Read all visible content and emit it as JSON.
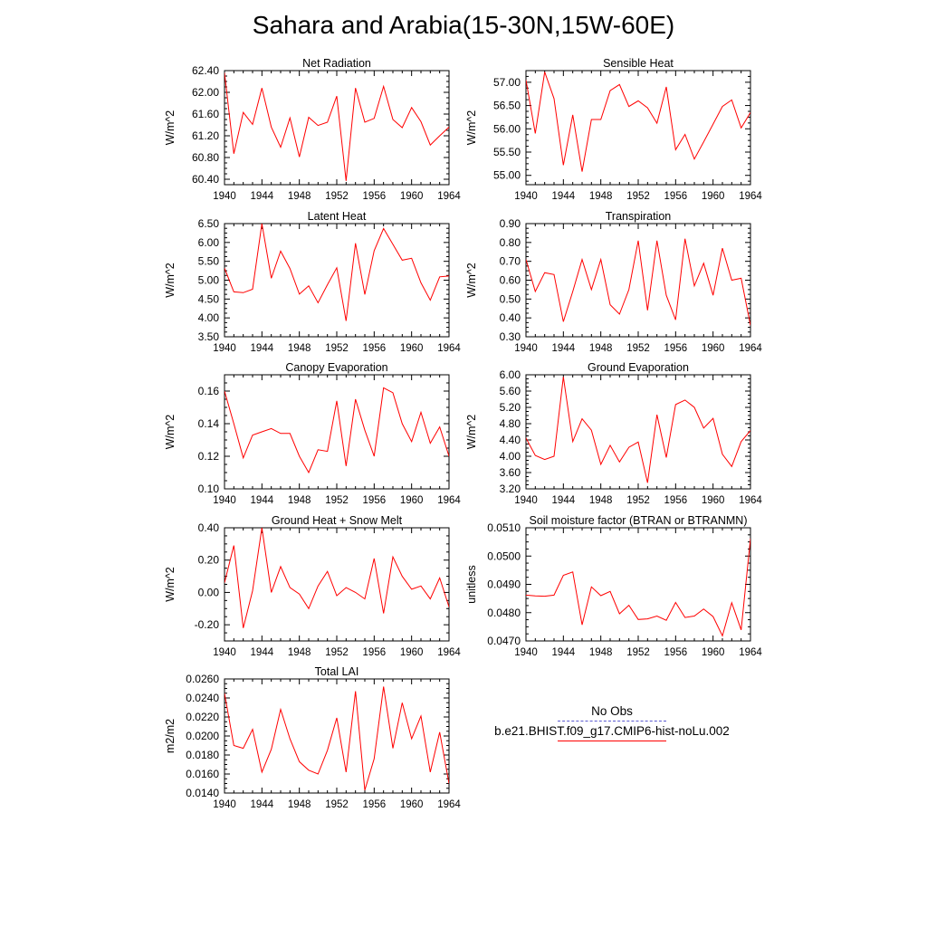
{
  "title": "Sahara and Arabia(15-30N,15W-60E)",
  "legend": {
    "obs_label": "No Obs",
    "model_label": "b.e21.BHIST.f09_g17.CMIP6-hist-noLu.002",
    "obs_color": "#5a5ad0",
    "model_color": "#ff0000"
  },
  "chart_data": [
    {
      "type": "line",
      "title": "Net Radiation",
      "ylabel": "W/m^2",
      "xlim": [
        1940,
        1964
      ],
      "ylim": [
        60.3,
        62.4
      ],
      "x_ticks": [
        "1940",
        "1944",
        "1948",
        "1952",
        "1956",
        "1960",
        "1964"
      ],
      "y_ticks": [
        "60.40",
        "60.80",
        "61.20",
        "61.60",
        "62.00",
        "62.40"
      ],
      "series": [
        {
          "x": [
            1940,
            1941,
            1942,
            1943,
            1944,
            1945,
            1946,
            1947,
            1948,
            1949,
            1950,
            1951,
            1952,
            1953,
            1954,
            1955,
            1956,
            1957,
            1958,
            1959,
            1960,
            1961,
            1962,
            1963,
            1964
          ],
          "y": [
            62.36,
            60.87,
            61.63,
            61.41,
            62.08,
            61.36,
            60.99,
            61.53,
            60.81,
            61.54,
            61.39,
            61.45,
            61.93,
            60.37,
            62.08,
            61.45,
            61.52,
            62.11,
            61.5,
            61.35,
            61.72,
            61.46,
            61.03,
            61.2,
            61.36
          ]
        }
      ]
    },
    {
      "type": "line",
      "title": "Sensible Heat",
      "ylabel": "W/m^2",
      "xlim": [
        1940,
        1964
      ],
      "ylim": [
        54.8,
        57.25
      ],
      "x_ticks": [
        "1940",
        "1944",
        "1948",
        "1952",
        "1956",
        "1960",
        "1964"
      ],
      "y_ticks": [
        "55.00",
        "55.50",
        "56.00",
        "56.50",
        "57.00"
      ],
      "series": [
        {
          "x": [
            1940,
            1941,
            1942,
            1943,
            1944,
            1945,
            1946,
            1947,
            1948,
            1949,
            1950,
            1951,
            1952,
            1953,
            1954,
            1955,
            1956,
            1957,
            1958,
            1959,
            1960,
            1961,
            1962,
            1963,
            1964
          ],
          "y": [
            57.05,
            55.9,
            57.22,
            56.65,
            55.22,
            56.3,
            55.08,
            56.2,
            56.2,
            56.82,
            56.95,
            56.48,
            56.6,
            56.45,
            56.12,
            56.9,
            55.55,
            55.88,
            55.35,
            55.72,
            56.1,
            56.48,
            56.62,
            56.02,
            56.35
          ]
        }
      ]
    },
    {
      "type": "line",
      "title": "Latent Heat",
      "ylabel": "W/m^2",
      "xlim": [
        1940,
        1964
      ],
      "ylim": [
        3.5,
        6.5
      ],
      "x_ticks": [
        "1940",
        "1944",
        "1948",
        "1952",
        "1956",
        "1960",
        "1964"
      ],
      "y_ticks": [
        "3.50",
        "4.00",
        "4.50",
        "5.00",
        "5.50",
        "6.00",
        "6.50"
      ],
      "series": [
        {
          "x": [
            1940,
            1941,
            1942,
            1943,
            1944,
            1945,
            1946,
            1947,
            1948,
            1949,
            1950,
            1951,
            1952,
            1953,
            1954,
            1955,
            1956,
            1957,
            1958,
            1959,
            1960,
            1961,
            1962,
            1963,
            1964
          ],
          "y": [
            5.32,
            4.69,
            4.67,
            4.76,
            6.5,
            5.05,
            5.77,
            5.31,
            4.63,
            4.85,
            4.4,
            4.88,
            5.33,
            3.92,
            5.98,
            4.62,
            5.78,
            6.37,
            5.95,
            5.53,
            5.58,
            4.93,
            4.47,
            5.09,
            5.11
          ]
        }
      ]
    },
    {
      "type": "line",
      "title": "Transpiration",
      "ylabel": "W/m^2",
      "xlim": [
        1940,
        1964
      ],
      "ylim": [
        0.3,
        0.9
      ],
      "x_ticks": [
        "1940",
        "1944",
        "1948",
        "1952",
        "1956",
        "1960",
        "1964"
      ],
      "y_ticks": [
        "0.30",
        "0.40",
        "0.50",
        "0.60",
        "0.70",
        "0.80",
        "0.90"
      ],
      "series": [
        {
          "x": [
            1940,
            1941,
            1942,
            1943,
            1944,
            1945,
            1946,
            1947,
            1948,
            1949,
            1950,
            1951,
            1952,
            1953,
            1954,
            1955,
            1956,
            1957,
            1958,
            1959,
            1960,
            1961,
            1962,
            1963,
            1964
          ],
          "y": [
            0.71,
            0.54,
            0.64,
            0.63,
            0.38,
            0.54,
            0.71,
            0.55,
            0.71,
            0.47,
            0.42,
            0.55,
            0.81,
            0.44,
            0.81,
            0.52,
            0.39,
            0.82,
            0.57,
            0.69,
            0.52,
            0.77,
            0.6,
            0.61,
            0.36
          ]
        }
      ]
    },
    {
      "type": "line",
      "title": "Canopy Evaporation",
      "ylabel": "W/m^2",
      "xlim": [
        1940,
        1964
      ],
      "ylim": [
        0.1,
        0.17
      ],
      "x_ticks": [
        "1940",
        "1944",
        "1948",
        "1952",
        "1956",
        "1960",
        "1964"
      ],
      "y_ticks": [
        "0.10",
        "0.12",
        "0.14",
        "0.16"
      ],
      "series": [
        {
          "x": [
            1940,
            1941,
            1942,
            1943,
            1944,
            1945,
            1946,
            1947,
            1948,
            1949,
            1950,
            1951,
            1952,
            1953,
            1954,
            1955,
            1956,
            1957,
            1958,
            1959,
            1960,
            1961,
            1962,
            1963,
            1964
          ],
          "y": [
            0.16,
            0.14,
            0.119,
            0.133,
            0.135,
            0.137,
            0.134,
            0.134,
            0.12,
            0.11,
            0.124,
            0.123,
            0.154,
            0.114,
            0.155,
            0.136,
            0.12,
            0.162,
            0.159,
            0.14,
            0.129,
            0.147,
            0.128,
            0.138,
            0.12
          ]
        }
      ]
    },
    {
      "type": "line",
      "title": "Ground Evaporation",
      "ylabel": "W/m^2",
      "xlim": [
        1940,
        1964
      ],
      "ylim": [
        3.2,
        6.0
      ],
      "x_ticks": [
        "1940",
        "1944",
        "1948",
        "1952",
        "1956",
        "1960",
        "1964"
      ],
      "y_ticks": [
        "3.20",
        "3.60",
        "4.00",
        "4.40",
        "4.80",
        "5.20",
        "5.60",
        "6.00"
      ],
      "series": [
        {
          "x": [
            1940,
            1941,
            1942,
            1943,
            1944,
            1945,
            1946,
            1947,
            1948,
            1949,
            1950,
            1951,
            1952,
            1953,
            1954,
            1955,
            1956,
            1957,
            1958,
            1959,
            1960,
            1961,
            1962,
            1963,
            1964
          ],
          "y": [
            4.45,
            4.02,
            3.92,
            4.0,
            5.95,
            4.36,
            4.92,
            4.64,
            3.8,
            4.27,
            3.86,
            4.22,
            4.35,
            3.35,
            5.02,
            3.97,
            5.27,
            5.38,
            5.2,
            4.69,
            4.93,
            4.05,
            3.75,
            4.36,
            4.63
          ]
        }
      ]
    },
    {
      "type": "line",
      "title": "Ground Heat + Snow Melt",
      "ylabel": "W/m^2",
      "xlim": [
        1940,
        1964
      ],
      "ylim": [
        -0.3,
        0.4
      ],
      "x_ticks": [
        "1940",
        "1944",
        "1948",
        "1952",
        "1956",
        "1960",
        "1964"
      ],
      "y_ticks": [
        "-0.20",
        "0.00",
        "0.20",
        "0.40"
      ],
      "series": [
        {
          "x": [
            1940,
            1941,
            1942,
            1943,
            1944,
            1945,
            1946,
            1947,
            1948,
            1949,
            1950,
            1951,
            1952,
            1953,
            1954,
            1955,
            1956,
            1957,
            1958,
            1959,
            1960,
            1961,
            1962,
            1963,
            1964
          ],
          "y": [
            0.06,
            0.29,
            -0.22,
            0.01,
            0.4,
            0.0,
            0.16,
            0.03,
            -0.01,
            -0.1,
            0.04,
            0.13,
            -0.02,
            0.03,
            0.0,
            -0.04,
            0.21,
            -0.13,
            0.22,
            0.1,
            0.02,
            0.04,
            -0.04,
            0.09,
            -0.09
          ]
        }
      ]
    },
    {
      "type": "line",
      "title": "Soil moisture factor (BTRAN or BTRANMN)",
      "ylabel": "unitless",
      "xlim": [
        1940,
        1964
      ],
      "ylim": [
        0.047,
        0.051
      ],
      "x_ticks": [
        "1940",
        "1944",
        "1948",
        "1952",
        "1956",
        "1960",
        "1964"
      ],
      "y_ticks": [
        "0.0470",
        "0.0480",
        "0.0490",
        "0.0500",
        "0.0510"
      ],
      "series": [
        {
          "x": [
            1940,
            1941,
            1942,
            1943,
            1944,
            1945,
            1946,
            1947,
            1948,
            1949,
            1950,
            1951,
            1952,
            1953,
            1954,
            1955,
            1956,
            1957,
            1958,
            1959,
            1960,
            1961,
            1962,
            1963,
            1964
          ],
          "y": [
            0.04862,
            0.04859,
            0.04858,
            0.04862,
            0.04932,
            0.04944,
            0.04757,
            0.04891,
            0.0486,
            0.04875,
            0.04796,
            0.04826,
            0.04776,
            0.04778,
            0.04788,
            0.04773,
            0.04836,
            0.04783,
            0.04788,
            0.04813,
            0.04786,
            0.04718,
            0.04835,
            0.04739,
            0.05062
          ]
        }
      ]
    },
    {
      "type": "line",
      "title": "Total LAI",
      "ylabel": "m2/m2",
      "xlim": [
        1940,
        1964
      ],
      "ylim": [
        0.014,
        0.026
      ],
      "x_ticks": [
        "1940",
        "1944",
        "1948",
        "1952",
        "1956",
        "1960",
        "1964"
      ],
      "y_ticks": [
        "0.0140",
        "0.0160",
        "0.0180",
        "0.0200",
        "0.0220",
        "0.0240",
        "0.0260"
      ],
      "series": [
        {
          "x": [
            1940,
            1941,
            1942,
            1943,
            1944,
            1945,
            1946,
            1947,
            1948,
            1949,
            1950,
            1951,
            1952,
            1953,
            1954,
            1955,
            1956,
            1957,
            1958,
            1959,
            1960,
            1961,
            1962,
            1963,
            1964
          ],
          "y": [
            0.0245,
            0.019,
            0.0187,
            0.0207,
            0.0162,
            0.0186,
            0.0228,
            0.0197,
            0.0173,
            0.0164,
            0.016,
            0.0185,
            0.0219,
            0.0162,
            0.0247,
            0.0143,
            0.0176,
            0.0252,
            0.0187,
            0.0235,
            0.0197,
            0.0221,
            0.0162,
            0.0204,
            0.015
          ]
        }
      ]
    }
  ]
}
